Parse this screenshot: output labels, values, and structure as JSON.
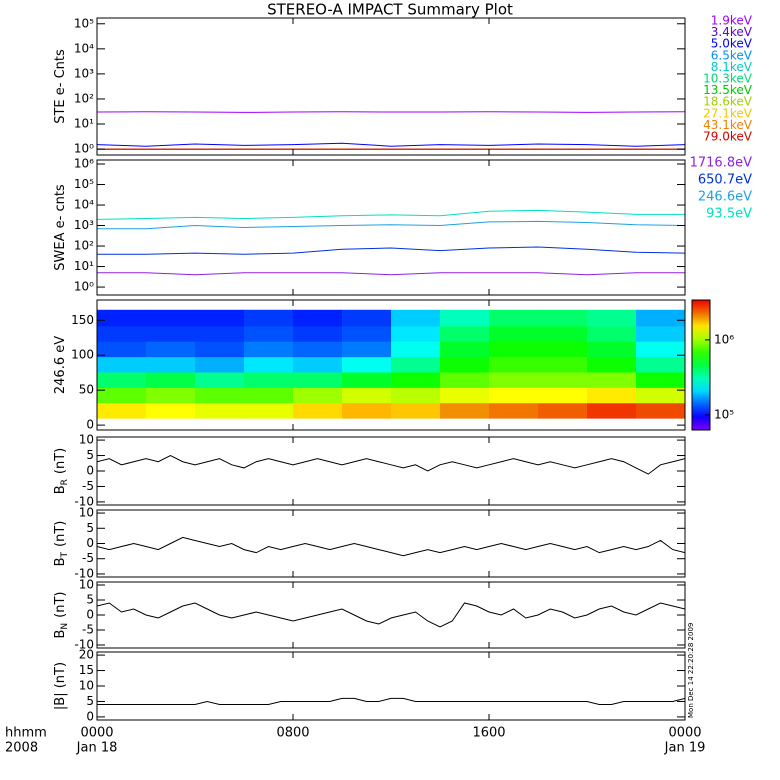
{
  "chart_data": [
    {
      "type": "line",
      "title": "STEREO-A IMPACT Summary Plot",
      "ylabel": "STE e- Cnts",
      "log": true,
      "ylim": [
        0.58,
        170000
      ],
      "yticks": [
        {
          "value": 1,
          "label": "10⁰"
        },
        {
          "value": 10,
          "label": "10¹"
        },
        {
          "value": 100,
          "label": "10²"
        },
        {
          "value": 1000,
          "label": "10³"
        },
        {
          "value": 10000,
          "label": "10⁴"
        },
        {
          "value": 100000,
          "label": "10⁵"
        }
      ],
      "x": [
        0,
        2,
        4,
        6,
        8,
        10,
        12,
        14,
        16,
        18,
        20,
        22,
        24
      ],
      "series": [
        {
          "name": "1.9keV",
          "color": "#a000ff",
          "values": [
            30,
            31,
            30,
            29,
            30,
            31,
            30,
            30,
            31,
            30,
            29,
            30,
            31
          ]
        },
        {
          "name": "3.4keV",
          "color": "#5a00d0",
          "values": [
            1,
            1,
            1,
            1,
            1,
            1,
            1,
            1,
            1,
            1,
            1,
            1,
            1
          ]
        },
        {
          "name": "5.0keV",
          "color": "#0000ff",
          "values": [
            1.5,
            1.3,
            1.6,
            1.4,
            1.5,
            1.7,
            1.3,
            1.5,
            1.4,
            1.6,
            1.5,
            1.3,
            1.5
          ]
        },
        {
          "name": "6.5keV",
          "color": "#0090ff",
          "values": [
            1,
            1,
            1,
            1,
            1,
            1,
            1,
            1,
            1,
            1,
            1,
            1,
            1
          ]
        },
        {
          "name": "8.1keV",
          "color": "#00c8c8",
          "values": [
            1,
            1,
            1,
            1,
            1,
            1,
            1,
            1,
            1,
            1,
            1,
            1,
            1
          ]
        },
        {
          "name": "10.3keV",
          "color": "#00d878",
          "values": [
            1,
            1,
            1,
            1,
            1,
            1,
            1,
            1,
            1,
            1,
            1,
            1,
            1
          ]
        },
        {
          "name": "13.5keV",
          "color": "#00c800",
          "values": [
            1,
            1,
            1,
            1,
            1,
            1,
            1,
            1,
            1,
            1,
            1,
            1,
            1
          ]
        },
        {
          "name": "18.6keV",
          "color": "#a0d000",
          "values": [
            1,
            1,
            1,
            1,
            1,
            1,
            1,
            1,
            1,
            1,
            1,
            1,
            1
          ]
        },
        {
          "name": "27.1keV",
          "color": "#f0c800",
          "values": [
            1,
            1,
            1,
            1,
            1,
            1,
            1,
            1,
            1,
            1,
            1,
            1,
            1
          ]
        },
        {
          "name": "43.1keV",
          "color": "#f08000",
          "values": [
            1,
            1,
            1,
            1,
            1,
            1,
            1,
            1,
            1,
            1,
            1,
            1,
            1
          ]
        },
        {
          "name": "79.0keV",
          "color": "#d00000",
          "values": [
            1,
            1,
            1,
            1,
            1,
            1,
            1,
            1,
            1,
            1,
            1,
            1,
            1
          ]
        }
      ]
    },
    {
      "type": "line",
      "ylabel": "SWEA e- cnts",
      "log": true,
      "ylim": [
        0.41,
        1570000
      ],
      "yticks": [
        {
          "value": 1,
          "label": "10⁰"
        },
        {
          "value": 10,
          "label": "10¹"
        },
        {
          "value": 100,
          "label": "10²"
        },
        {
          "value": 1000,
          "label": "10³"
        },
        {
          "value": 10000,
          "label": "10⁴"
        },
        {
          "value": 100000,
          "label": "10⁵"
        },
        {
          "value": 1000000,
          "label": "10⁶"
        }
      ],
      "x": [
        0,
        2,
        4,
        6,
        8,
        10,
        12,
        14,
        16,
        18,
        20,
        22,
        24
      ],
      "series": [
        {
          "name": "1716.8eV",
          "color": "#9020e0",
          "values": [
            5,
            5,
            4,
            5,
            5,
            5,
            4,
            5,
            5,
            5,
            4,
            5,
            5
          ]
        },
        {
          "name": "650.7eV",
          "color": "#0030e0",
          "values": [
            40,
            40,
            45,
            40,
            45,
            70,
            80,
            60,
            80,
            90,
            70,
            50,
            45
          ]
        },
        {
          "name": "246.6eV",
          "color": "#20a0e0",
          "values": [
            700,
            700,
            1000,
            800,
            900,
            1000,
            1100,
            1000,
            1500,
            1600,
            1400,
            1100,
            1000
          ]
        },
        {
          "name": "93.5eV",
          "color": "#00e0c0",
          "values": [
            2000,
            2200,
            2500,
            2200,
            2500,
            3000,
            3300,
            3000,
            5000,
            5500,
            4500,
            3500,
            3500
          ]
        }
      ]
    },
    {
      "type": "heatmap",
      "ylabel": "246.6 eV",
      "log": false,
      "ylim": [
        -7,
        179
      ],
      "yticks": [
        0,
        50,
        100,
        150
      ],
      "xbins": [
        0,
        2,
        4,
        6,
        8,
        10,
        12,
        14,
        16,
        18,
        20,
        22,
        24
      ],
      "ybins": [
        10,
        32,
        54,
        76,
        98,
        120,
        142,
        165
      ],
      "values": [
        [
          1500000,
          800000,
          400000,
          200000,
          130000,
          120000,
          110000
        ],
        [
          1400000,
          900000,
          450000,
          200000,
          140000,
          120000,
          110000
        ],
        [
          1300000,
          800000,
          350000,
          180000,
          130000,
          120000,
          110000
        ],
        [
          1300000,
          800000,
          400000,
          220000,
          150000,
          130000,
          120000
        ],
        [
          1600000,
          1000000,
          400000,
          200000,
          140000,
          120000,
          110000
        ],
        [
          1800000,
          1200000,
          500000,
          250000,
          150000,
          130000,
          120000
        ],
        [
          1700000,
          1100000,
          600000,
          350000,
          250000,
          220000,
          200000
        ],
        [
          2000000,
          1300000,
          800000,
          600000,
          500000,
          400000,
          300000
        ],
        [
          2200000,
          1400000,
          900000,
          700000,
          600000,
          500000,
          400000
        ],
        [
          2400000,
          1400000,
          900000,
          700000,
          600000,
          500000,
          400000
        ],
        [
          2800000,
          1500000,
          900000,
          600000,
          500000,
          400000,
          350000
        ],
        [
          2600000,
          1200000,
          600000,
          350000,
          250000,
          200000,
          180000
        ]
      ],
      "zlim": [
        63000,
        3400000
      ],
      "zlog": true,
      "zticks": [
        {
          "value": 100000,
          "label": "10⁵"
        },
        {
          "value": 1000000,
          "label": "10⁶"
        }
      ]
    },
    {
      "type": "line",
      "ylabel": "B",
      "ylabel_sub": "R",
      "ylabel_unit": "(nT)",
      "log": false,
      "ylim": [
        -11,
        11
      ],
      "yticks": [
        -10,
        -5,
        0,
        5,
        10
      ],
      "x": [
        0,
        0.5,
        1,
        1.5,
        2,
        2.5,
        3,
        3.5,
        4,
        4.5,
        5,
        5.5,
        6,
        6.5,
        7,
        7.5,
        8,
        8.5,
        9,
        9.5,
        10,
        10.5,
        11,
        11.5,
        12,
        12.5,
        13,
        13.5,
        14,
        14.5,
        15,
        15.5,
        16,
        16.5,
        17,
        17.5,
        18,
        18.5,
        19,
        19.5,
        20,
        20.5,
        21,
        21.5,
        22,
        22.5,
        23,
        23.5,
        24
      ],
      "series": [
        {
          "color": "#000000",
          "values": [
            3,
            4,
            2,
            3,
            4,
            3,
            5,
            3,
            2,
            3,
            4,
            2,
            1,
            3,
            4,
            3,
            2,
            3,
            4,
            3,
            2,
            3,
            4,
            3,
            2,
            1,
            2,
            0,
            2,
            3,
            2,
            1,
            2,
            3,
            4,
            3,
            2,
            3,
            2,
            1,
            2,
            3,
            4,
            3,
            1,
            -1,
            2,
            3,
            4
          ]
        }
      ]
    },
    {
      "type": "line",
      "ylabel": "B",
      "ylabel_sub": "T",
      "ylabel_unit": "(nT)",
      "log": false,
      "ylim": [
        -11,
        11
      ],
      "yticks": [
        -10,
        -5,
        0,
        5,
        10
      ],
      "x": [
        0,
        0.5,
        1,
        1.5,
        2,
        2.5,
        3,
        3.5,
        4,
        4.5,
        5,
        5.5,
        6,
        6.5,
        7,
        7.5,
        8,
        8.5,
        9,
        9.5,
        10,
        10.5,
        11,
        11.5,
        12,
        12.5,
        13,
        13.5,
        14,
        14.5,
        15,
        15.5,
        16,
        16.5,
        17,
        17.5,
        18,
        18.5,
        19,
        19.5,
        20,
        20.5,
        21,
        21.5,
        22,
        22.5,
        23,
        23.5,
        24
      ],
      "series": [
        {
          "color": "#000000",
          "values": [
            -1,
            -2,
            -1,
            0,
            -1,
            -2,
            0,
            2,
            1,
            0,
            -1,
            0,
            -2,
            -3,
            -1,
            -2,
            -1,
            0,
            -1,
            -2,
            -1,
            0,
            -1,
            -2,
            -3,
            -4,
            -3,
            -2,
            -3,
            -2,
            -1,
            -2,
            -1,
            0,
            -1,
            -2,
            -1,
            0,
            -1,
            -2,
            -1,
            -3,
            -2,
            -1,
            -2,
            -1,
            1,
            -2,
            -3
          ]
        }
      ]
    },
    {
      "type": "line",
      "ylabel": "B",
      "ylabel_sub": "N",
      "ylabel_unit": "(nT)",
      "log": false,
      "ylim": [
        -11,
        11
      ],
      "yticks": [
        -10,
        -5,
        0,
        5,
        10
      ],
      "x": [
        0,
        0.5,
        1,
        1.5,
        2,
        2.5,
        3,
        3.5,
        4,
        4.5,
        5,
        5.5,
        6,
        6.5,
        7,
        7.5,
        8,
        8.5,
        9,
        9.5,
        10,
        10.5,
        11,
        11.5,
        12,
        12.5,
        13,
        13.5,
        14,
        14.5,
        15,
        15.5,
        16,
        16.5,
        17,
        17.5,
        18,
        18.5,
        19,
        19.5,
        20,
        20.5,
        21,
        21.5,
        22,
        22.5,
        23,
        23.5,
        24
      ],
      "series": [
        {
          "color": "#000000",
          "values": [
            3,
            4,
            1,
            2,
            0,
            -1,
            1,
            3,
            4,
            2,
            0,
            -1,
            0,
            1,
            0,
            -1,
            -2,
            -1,
            0,
            1,
            2,
            0,
            -2,
            -3,
            -1,
            0,
            1,
            -2,
            -4,
            -2,
            4,
            3,
            1,
            0,
            2,
            -1,
            0,
            2,
            1,
            -1,
            0,
            2,
            3,
            1,
            0,
            2,
            4,
            3,
            2
          ]
        }
      ]
    },
    {
      "type": "line",
      "ylabel": "|B| (nT)",
      "log": false,
      "ylim": [
        -1,
        21
      ],
      "yticks": [
        0,
        5,
        10,
        15,
        20
      ],
      "x": [
        0,
        0.5,
        1,
        1.5,
        2,
        2.5,
        3,
        3.5,
        4,
        4.5,
        5,
        5.5,
        6,
        6.5,
        7,
        7.5,
        8,
        8.5,
        9,
        9.5,
        10,
        10.5,
        11,
        11.5,
        12,
        12.5,
        13,
        13.5,
        14,
        14.5,
        15,
        15.5,
        16,
        16.5,
        17,
        17.5,
        18,
        18.5,
        19,
        19.5,
        20,
        20.5,
        21,
        21.5,
        22,
        22.5,
        23,
        23.5,
        24
      ],
      "series": [
        {
          "color": "#000000",
          "values": [
            4,
            4,
            4,
            4,
            4,
            4,
            4,
            4,
            4,
            5,
            4,
            4,
            4,
            4,
            4,
            5,
            5,
            5,
            5,
            5,
            6,
            6,
            5,
            5,
            6,
            6,
            5,
            5,
            5,
            5,
            5,
            5,
            5,
            5,
            5,
            5,
            5,
            5,
            5,
            5,
            5,
            4,
            4,
            5,
            5,
            5,
            5,
            5,
            6
          ]
        }
      ],
      "xlim": [
        0,
        24
      ],
      "xticks": [
        {
          "value": 0,
          "label": "0000"
        },
        {
          "value": 8,
          "label": "0800"
        },
        {
          "value": 16,
          "label": "1600"
        },
        {
          "value": 24,
          "label": "0000"
        }
      ],
      "date_labels": [
        {
          "value": 0,
          "label": "Jan 18"
        },
        {
          "value": 24,
          "label": "Jan 19"
        }
      ],
      "xlabel": "hhmm",
      "year": "2008",
      "timestamp": "Mon Dec 14 22:20:28 2009"
    }
  ]
}
